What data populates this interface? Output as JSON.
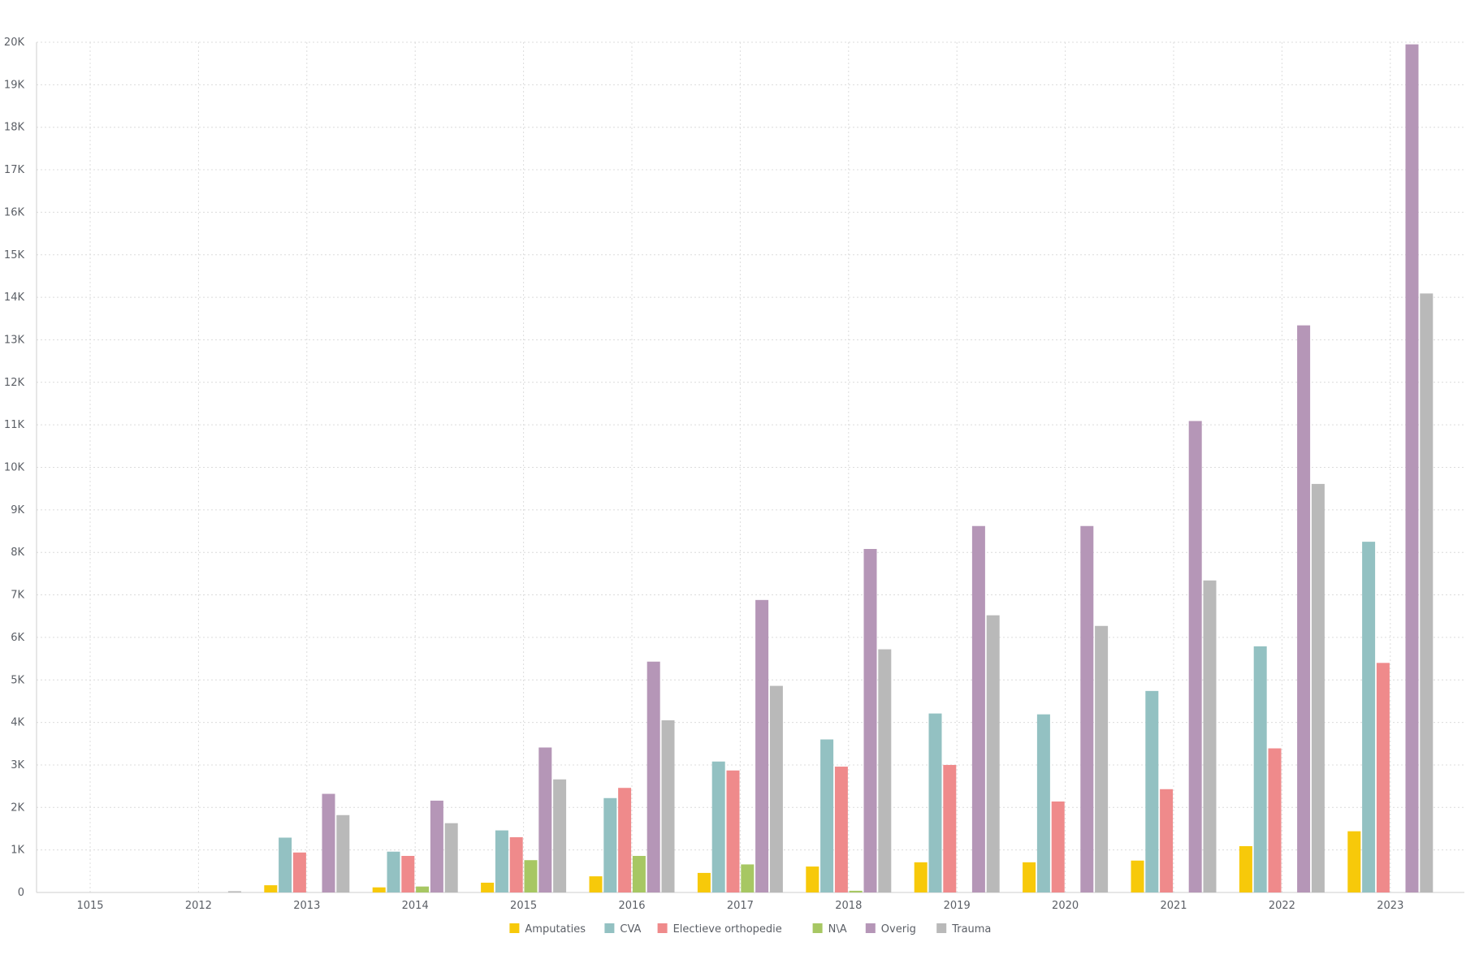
{
  "chart_data": {
    "type": "bar",
    "categories": [
      "1015",
      "2012",
      "2013",
      "2014",
      "2015",
      "2016",
      "2017",
      "2018",
      "2019",
      "2020",
      "2021",
      "2022",
      "2023"
    ],
    "series": [
      {
        "name": "Amputaties",
        "color": "#f7c90a",
        "values": [
          0,
          0,
          170,
          120,
          230,
          380,
          460,
          610,
          710,
          710,
          750,
          1090,
          1440
        ]
      },
      {
        "name": "CVA",
        "color": "#93c1c2",
        "values": [
          0,
          0,
          1290,
          960,
          1460,
          2220,
          3080,
          3600,
          4210,
          4190,
          4740,
          5790,
          8250
        ]
      },
      {
        "name": "Electieve orthopedie",
        "color": "#ef8a8b",
        "values": [
          0,
          0,
          940,
          860,
          1300,
          2460,
          2870,
          2960,
          3000,
          2140,
          2430,
          3390,
          5400
        ]
      },
      {
        "name": "N\\A",
        "color": "#a7c763",
        "values": [
          0,
          0,
          0,
          140,
          760,
          860,
          660,
          40,
          0,
          0,
          0,
          0,
          0
        ]
      },
      {
        "name": "Overig",
        "color": "#b596b7",
        "values": [
          0,
          0,
          2320,
          2160,
          3410,
          5430,
          6880,
          8080,
          8620,
          8620,
          11090,
          13340,
          19950
        ]
      },
      {
        "name": "Trauma",
        "color": "#b9b9b9",
        "values": [
          0,
          30,
          1820,
          1630,
          2660,
          4050,
          4860,
          5720,
          6520,
          6270,
          7340,
          9610,
          14090
        ]
      }
    ],
    "yticks": [
      "0",
      "1K",
      "2K",
      "3K",
      "4K",
      "5K",
      "6K",
      "7K",
      "8K",
      "9K",
      "10K",
      "11K",
      "12K",
      "13K",
      "14K",
      "15K",
      "16K",
      "17K",
      "18K",
      "19K",
      "20K"
    ],
    "ylim": [
      0,
      20000
    ],
    "grid": true,
    "legend_position": "bottom-center",
    "title": "",
    "xlabel": "",
    "ylabel": ""
  }
}
